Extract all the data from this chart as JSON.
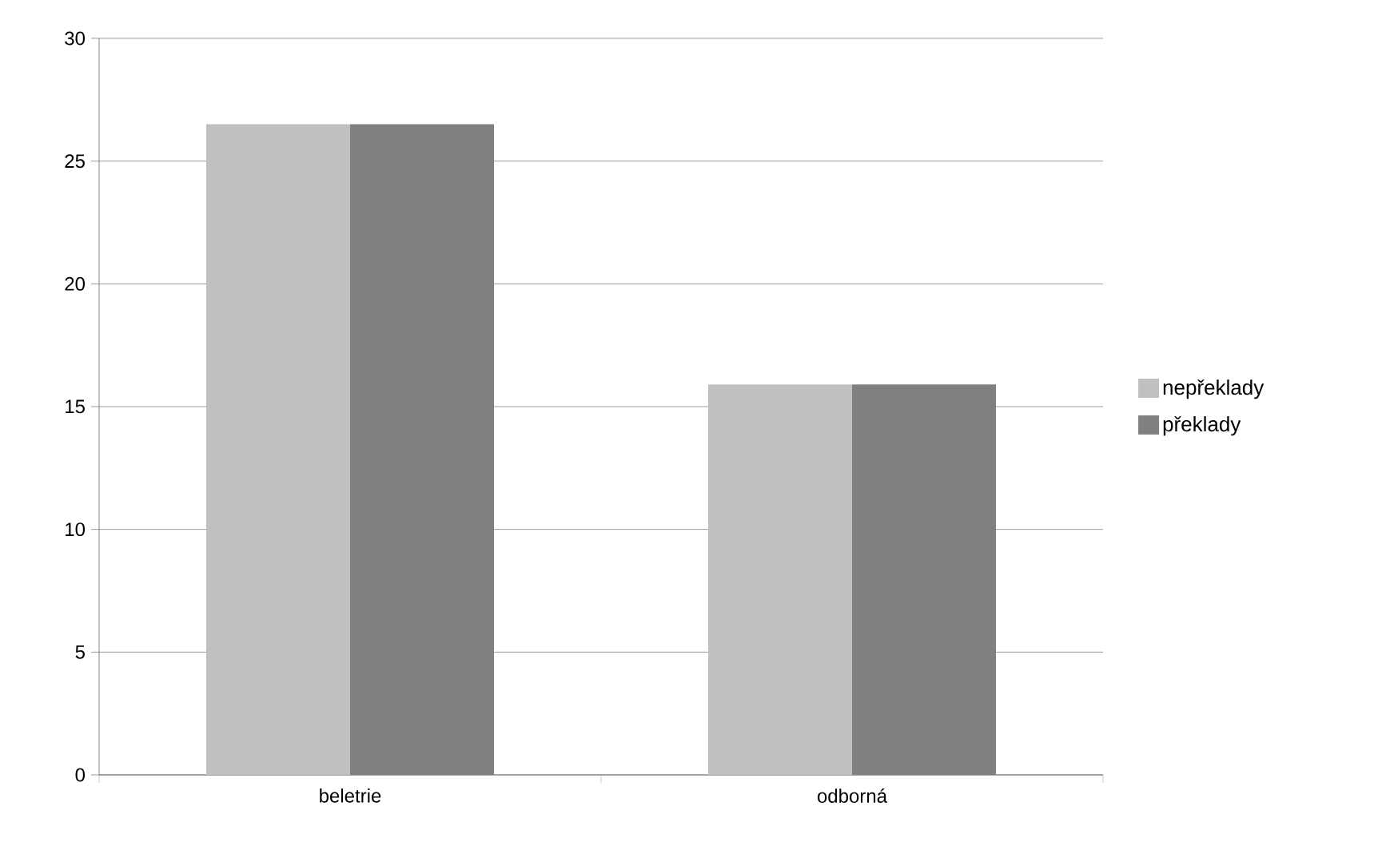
{
  "chart_data": {
    "type": "bar",
    "categories": [
      "beletrie",
      "odborná"
    ],
    "series": [
      {
        "name": "nepřeklady",
        "color": "#c0c0c0",
        "values": [
          26.5,
          15.9
        ]
      },
      {
        "name": "překlady",
        "color": "#808080",
        "values": [
          26.5,
          15.9
        ]
      }
    ],
    "ylim": [
      0,
      30
    ],
    "yticks": [
      0,
      5,
      10,
      15,
      20,
      25,
      30
    ],
    "grid": "y",
    "legend": "right"
  }
}
